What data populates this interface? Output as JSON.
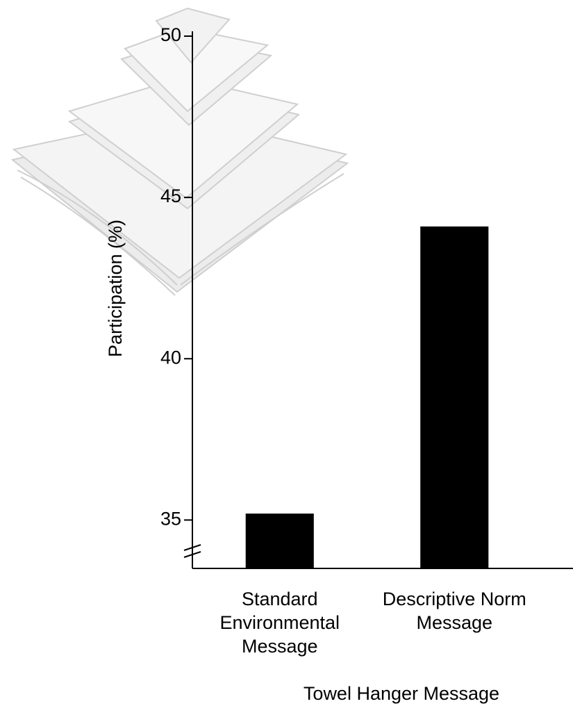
{
  "chart_data": {
    "type": "bar",
    "y_label": "Participation (%)",
    "x_label": "Towel Hanger Message",
    "categories": [
      "Standard Environmental Message",
      "Descriptive Norm Message"
    ],
    "values": [
      35.2,
      44.1
    ],
    "color": "#000000",
    "ylim": [
      33.5,
      50
    ],
    "yticks": [
      35,
      40,
      45,
      50
    ],
    "grid": false
  }
}
